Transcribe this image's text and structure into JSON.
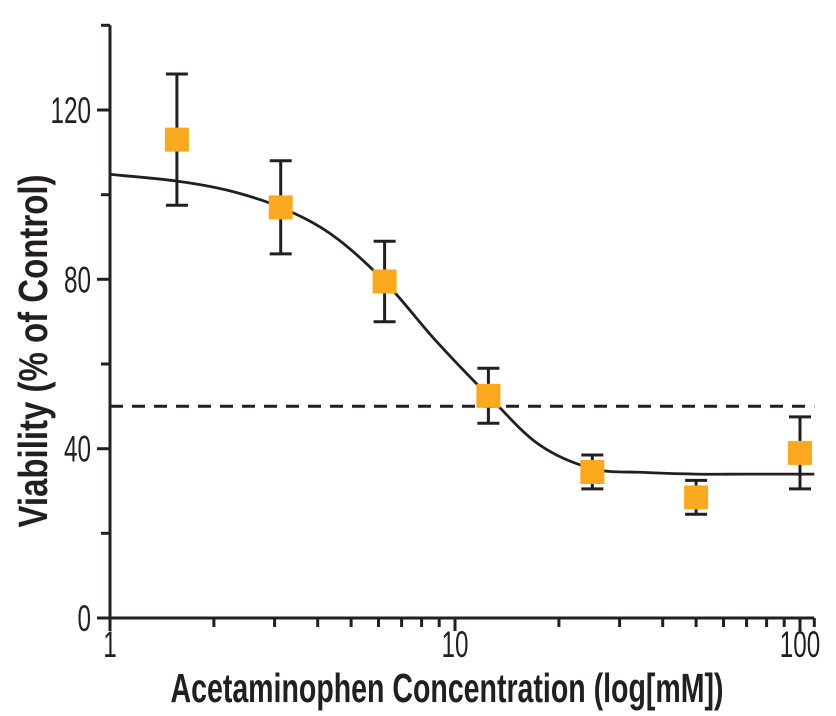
{
  "figure": {
    "background": "#ffffff",
    "ink_color": "#231f20",
    "marker_color": "#faa81e"
  },
  "chart_data": {
    "type": "scatter",
    "subtype": "dose-response-curve-with-error-bars",
    "title": "",
    "xlabel": "Acetaminophen Concentration (log[mM])",
    "ylabel": "Viability (% of Control)",
    "x_scale": "log10",
    "xlim": [
      1,
      110
    ],
    "ylim": [
      0,
      140
    ],
    "grid": false,
    "legend": false,
    "x_major_ticks": [
      1,
      10,
      100
    ],
    "x_major_tick_labels": [
      "1",
      "10",
      "100"
    ],
    "x_minor_ticks": [
      2,
      3,
      4,
      5,
      6,
      7,
      8,
      9,
      20,
      30,
      40,
      50,
      60,
      70,
      80,
      90,
      110
    ],
    "y_major_ticks": [
      0,
      40,
      80,
      120
    ],
    "y_major_tick_labels": [
      "0",
      "40",
      "80",
      "120"
    ],
    "y_minor_ticks": [
      20,
      60,
      100,
      140
    ],
    "series": [
      {
        "name": "viability-data",
        "marker": "square",
        "marker_color": "#faa81e",
        "x": [
          1.5625,
          3.125,
          6.25,
          12.5,
          25,
          50,
          100
        ],
        "y": [
          113,
          97,
          79.5,
          52.5,
          34.5,
          28.5,
          39
        ],
        "y_err": [
          15.5,
          11,
          9.5,
          6.5,
          4,
          4,
          8.5
        ]
      }
    ],
    "fit_curve": {
      "name": "sigmoid-fit",
      "color": "#231f20",
      "points": [
        [
          1,
          104.8
        ],
        [
          1.5625,
          103.2
        ],
        [
          2.2,
          101
        ],
        [
          3.125,
          97
        ],
        [
          4.4,
          90.5
        ],
        [
          6.25,
          79.5
        ],
        [
          8.8,
          65.5
        ],
        [
          12.5,
          52.5
        ],
        [
          17.5,
          41
        ],
        [
          25,
          35.3
        ],
        [
          35,
          34.4
        ],
        [
          50,
          34
        ],
        [
          70,
          34
        ],
        [
          110,
          34
        ]
      ],
      "top_plateau": 105,
      "bottom_plateau": 34
    },
    "reference_line": {
      "name": "ic50-reference",
      "y": 50,
      "style": "dashed",
      "color": "#231f20"
    }
  }
}
